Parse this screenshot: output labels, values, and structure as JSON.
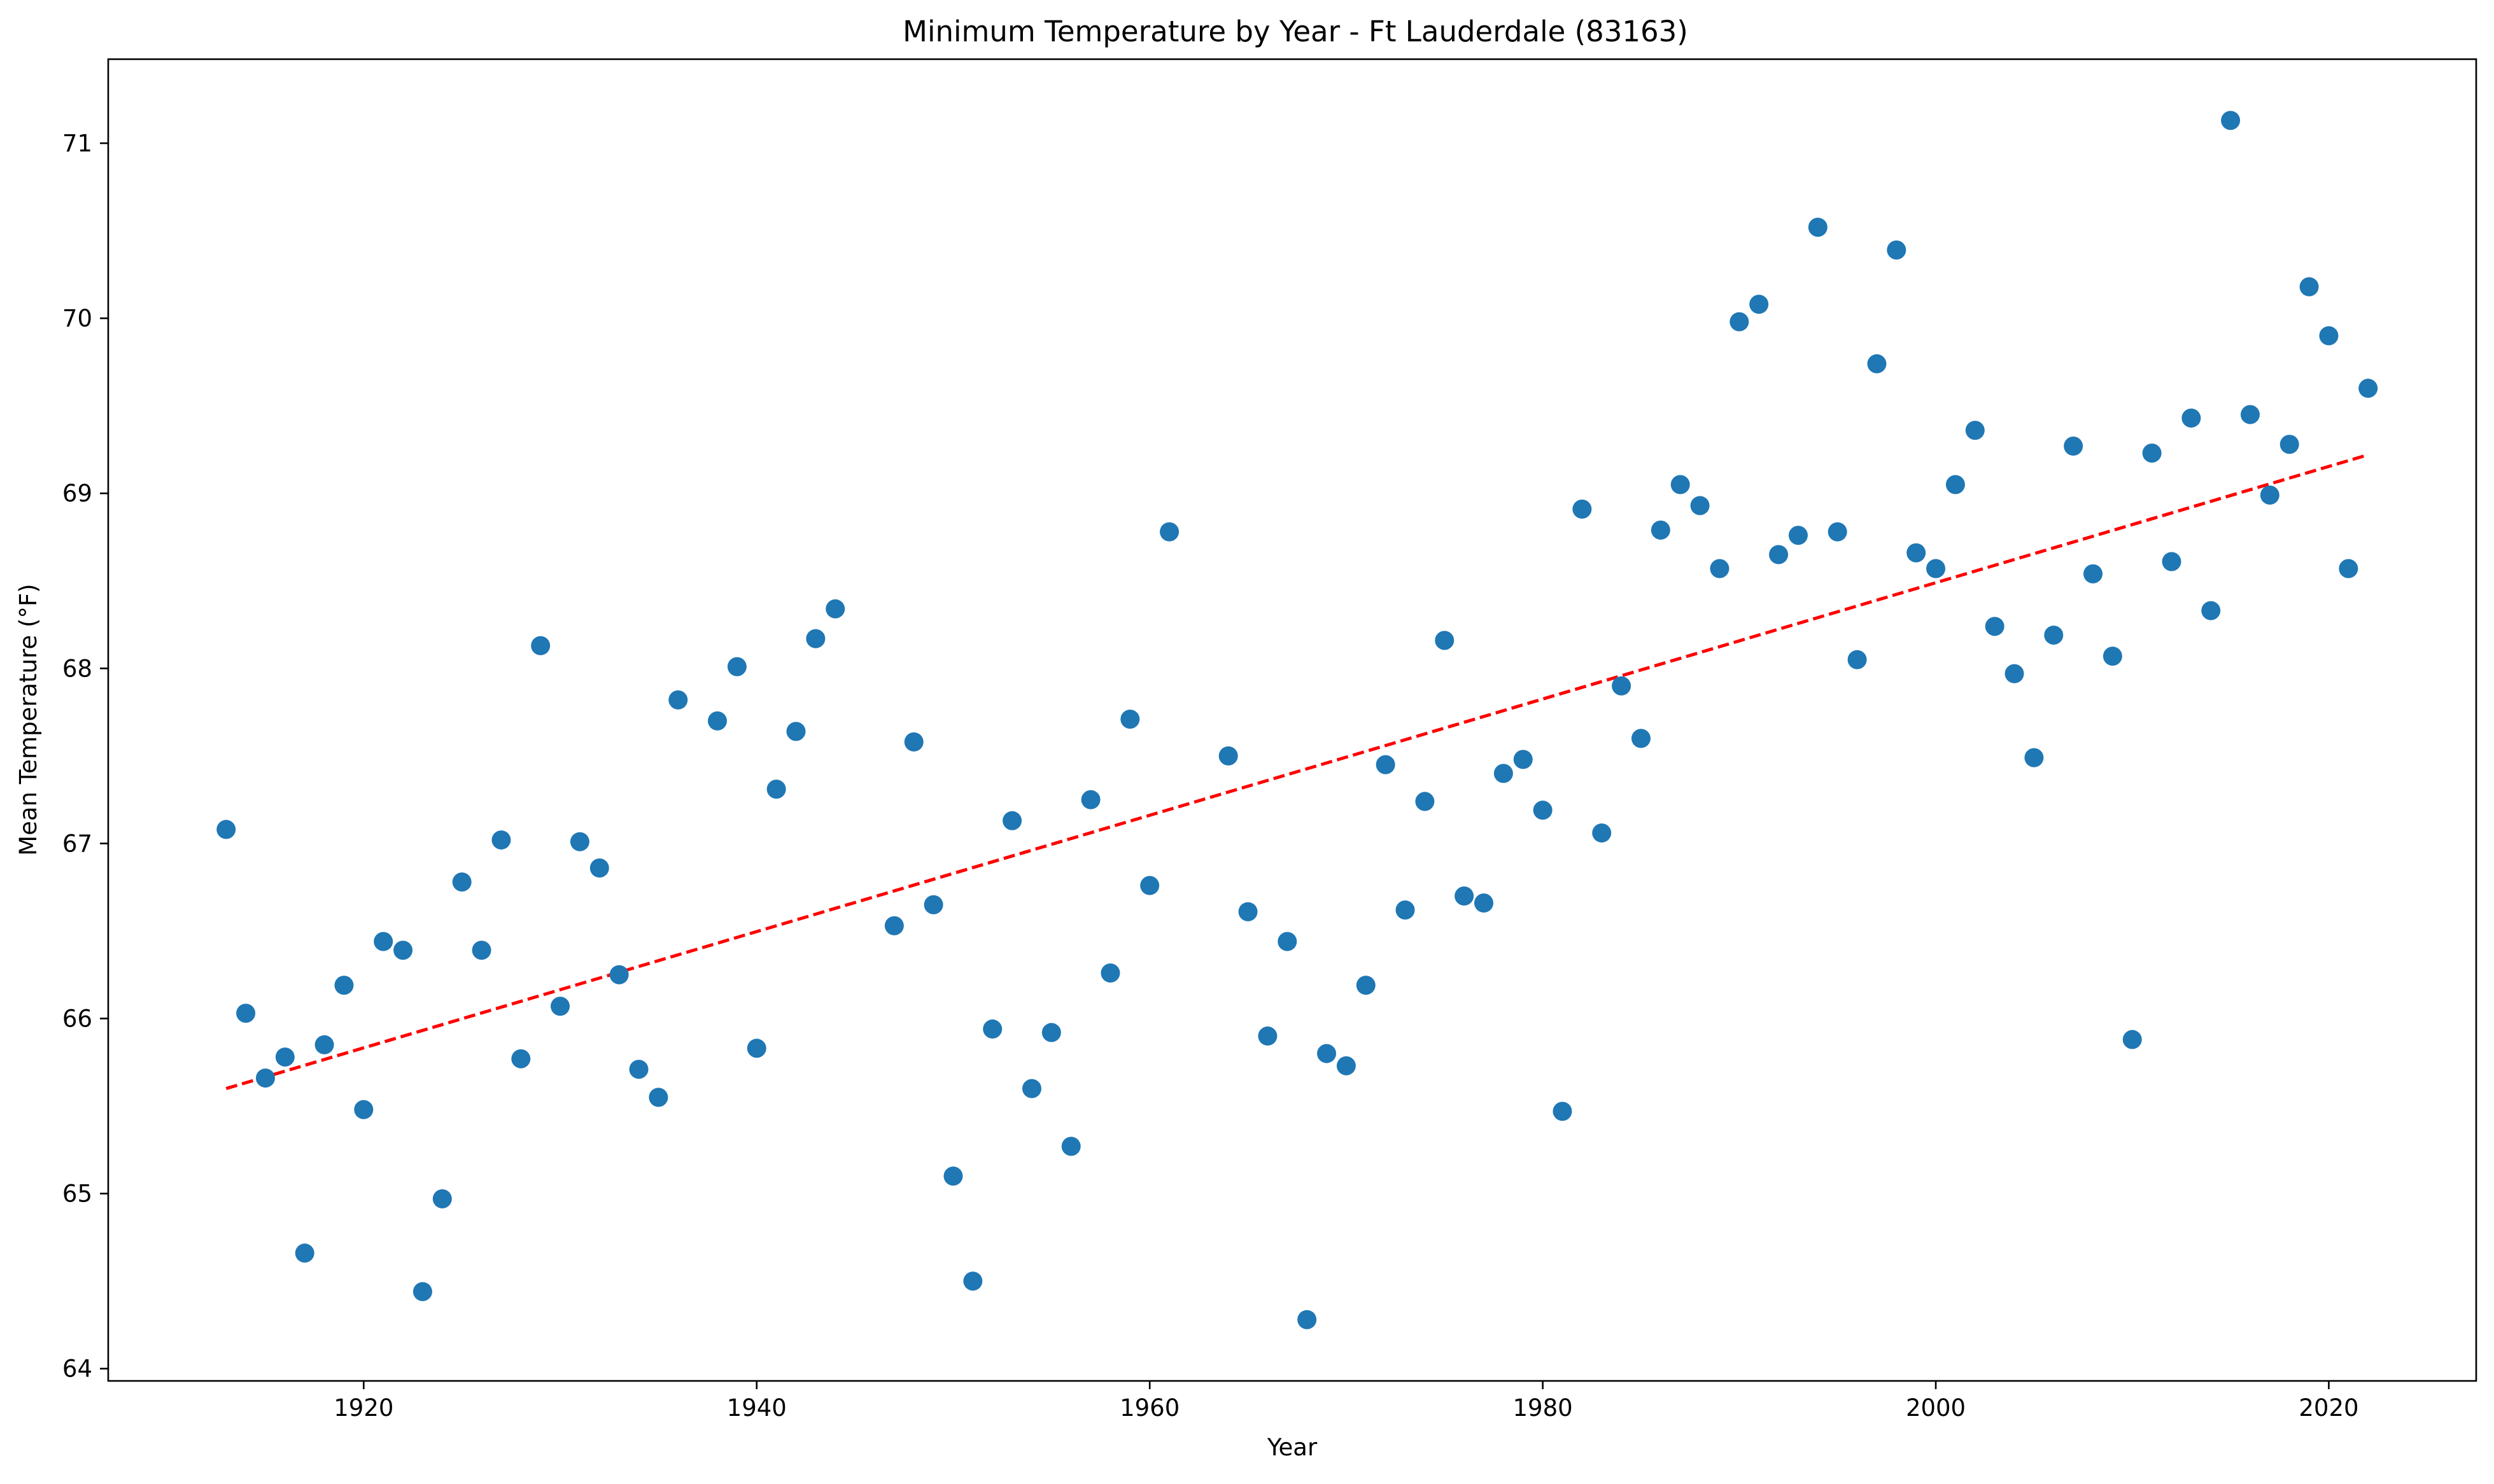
{
  "chart_data": {
    "type": "scatter",
    "title": "Minimum Temperature by Year - Ft Lauderdale (83163)",
    "xlabel": "Year",
    "ylabel": "Mean Temperature (°F)",
    "xlim": [
      1907,
      2027.5
    ],
    "ylim": [
      63.93,
      71.48
    ],
    "xticks": [
      1920,
      1940,
      1960,
      1980,
      2000,
      2020
    ],
    "yticks": [
      64,
      65,
      66,
      67,
      68,
      69,
      70,
      71
    ],
    "grid": false,
    "legend": "none",
    "series": [
      {
        "kind": "points",
        "color": "#1f77b4",
        "x": [
          1913,
          1914,
          1915,
          1916,
          1917,
          1918,
          1919,
          1920,
          1921,
          1922,
          1923,
          1924,
          1925,
          1926,
          1927,
          1928,
          1929,
          1930,
          1931,
          1932,
          1933,
          1934,
          1935,
          1936,
          1938,
          1939,
          1940,
          1941,
          1942,
          1943,
          1944,
          1947,
          1948,
          1949,
          1950,
          1951,
          1952,
          1953,
          1954,
          1955,
          1956,
          1957,
          1958,
          1959,
          1960,
          1961,
          1964,
          1965,
          1966,
          1967,
          1968,
          1969,
          1970,
          1971,
          1972,
          1973,
          1974,
          1975,
          1976,
          1977,
          1978,
          1979,
          1980,
          1981,
          1982,
          1983,
          1984,
          1985,
          1986,
          1987,
          1988,
          1989,
          1990,
          1991,
          1992,
          1993,
          1994,
          1995,
          1996,
          1997,
          1998,
          1999,
          2000,
          2001,
          2002,
          2003,
          2004,
          2005,
          2006,
          2007,
          2008,
          2009,
          2010,
          2011,
          2012,
          2013,
          2014,
          2015,
          2016,
          2017,
          2018,
          2019,
          2020,
          2021,
          2022
        ],
        "y": [
          67.08,
          66.03,
          65.66,
          65.78,
          64.66,
          65.85,
          66.19,
          65.48,
          66.44,
          66.39,
          64.44,
          64.97,
          66.78,
          66.39,
          67.02,
          65.77,
          68.13,
          66.07,
          67.01,
          66.86,
          66.25,
          65.71,
          65.55,
          67.82,
          67.7,
          68.01,
          65.83,
          67.31,
          67.64,
          68.17,
          68.34,
          66.53,
          67.58,
          66.65,
          65.1,
          64.5,
          65.94,
          67.13,
          65.6,
          65.92,
          65.27,
          67.25,
          66.26,
          67.71,
          66.76,
          68.78,
          67.5,
          66.61,
          65.9,
          66.44,
          64.28,
          65.8,
          65.73,
          66.19,
          67.45,
          66.62,
          67.24,
          68.16,
          66.7,
          66.66,
          67.4,
          67.48,
          67.19,
          65.47,
          68.91,
          67.06,
          67.9,
          67.6,
          68.79,
          69.05,
          68.93,
          68.57,
          69.98,
          70.08,
          68.65,
          68.76,
          70.52,
          68.78,
          68.05,
          69.74,
          70.39,
          68.66,
          68.57,
          69.05,
          69.36,
          68.24,
          67.97,
          67.49,
          68.19,
          69.27,
          68.54,
          68.07,
          65.88,
          69.23,
          68.61,
          69.43,
          68.33,
          71.13,
          69.45,
          68.99,
          69.28,
          70.18,
          69.9,
          68.57,
          69.6
        ]
      },
      {
        "kind": "trend-line",
        "color": "#ff0000",
        "style": "dashed",
        "x": [
          1913,
          2022
        ],
        "y": [
          65.6,
          69.22
        ]
      }
    ]
  }
}
